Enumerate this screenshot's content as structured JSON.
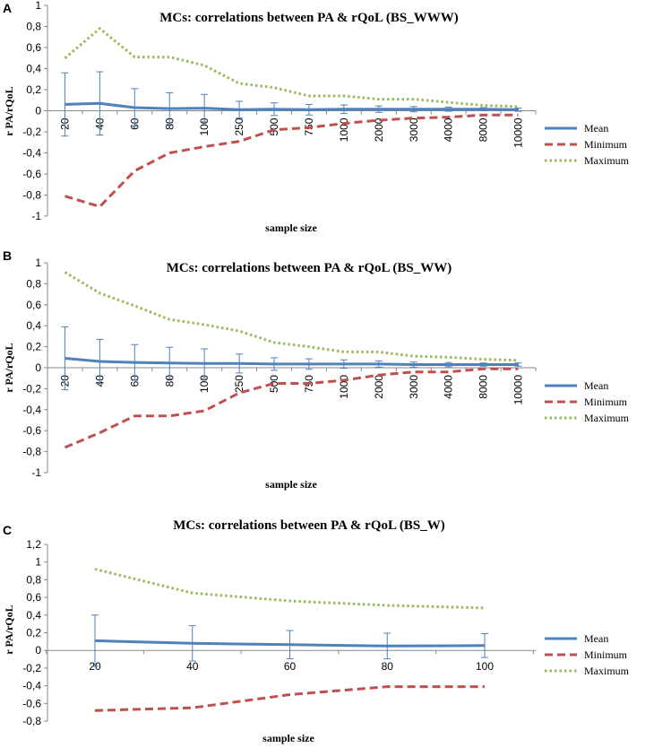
{
  "chart_data": [
    {
      "panel": "A",
      "type": "line",
      "title": "MCs: correlations between PA & rQoL (BS_WWW)",
      "xlabel": "sample size",
      "ylabel": "r PA/rQoL",
      "ylim": [
        -1,
        1
      ],
      "yticks": [
        "1",
        "0,8",
        "0,6",
        "0,4",
        "0,2",
        "0",
        "-0,2",
        "-0,4",
        "-0,6",
        "-0,8",
        "-1"
      ],
      "categories": [
        "20",
        "40",
        "60",
        "80",
        "100",
        "250",
        "500",
        "750",
        "1000",
        "2000",
        "3000",
        "4000",
        "8000",
        "10000"
      ],
      "series": [
        {
          "name": "Mean",
          "style": "solid",
          "color": "#4F81BD",
          "values": [
            0.06,
            0.07,
            0.03,
            0.02,
            0.025,
            0.01,
            0.015,
            0.01,
            0.015,
            0.015,
            0.015,
            0.015,
            0.015,
            0.01
          ]
        },
        {
          "name": "Minimum",
          "style": "dashed",
          "color": "#C0504D",
          "values": [
            -0.81,
            -0.91,
            -0.57,
            -0.4,
            -0.34,
            -0.29,
            -0.18,
            -0.16,
            -0.12,
            -0.09,
            -0.07,
            -0.06,
            -0.04,
            -0.04
          ]
        },
        {
          "name": "Maximum",
          "style": "dotted",
          "color": "#9BBB59",
          "values": [
            0.5,
            0.78,
            0.51,
            0.51,
            0.43,
            0.26,
            0.22,
            0.14,
            0.14,
            0.11,
            0.11,
            0.08,
            0.05,
            0.04
          ]
        }
      ],
      "error_bars": [
        0.3,
        0.3,
        0.18,
        0.15,
        0.13,
        0.08,
        0.06,
        0.05,
        0.04,
        0.03,
        0.025,
        0.02,
        0.015,
        0.015
      ],
      "legend": "right"
    },
    {
      "panel": "B",
      "type": "line",
      "title": "MCs: correlations between PA & rQoL (BS_WW)",
      "xlabel": "sample size",
      "ylabel": "r PA/rQoL",
      "ylim": [
        -1,
        1
      ],
      "yticks": [
        "1",
        "0,8",
        "0,6",
        "0,4",
        "0,2",
        "0",
        "-0,2",
        "-0,4",
        "-0,6",
        "-0,8",
        "-1"
      ],
      "categories": [
        "20",
        "40",
        "60",
        "80",
        "100",
        "250",
        "500",
        "750",
        "1000",
        "2000",
        "3000",
        "4000",
        "8000",
        "10000"
      ],
      "series": [
        {
          "name": "Mean",
          "style": "solid",
          "color": "#4F81BD",
          "values": [
            0.09,
            0.06,
            0.05,
            0.045,
            0.04,
            0.04,
            0.035,
            0.035,
            0.035,
            0.035,
            0.03,
            0.03,
            0.03,
            0.03
          ]
        },
        {
          "name": "Minimum",
          "style": "dashed",
          "color": "#C0504D",
          "values": [
            -0.76,
            -0.62,
            -0.46,
            -0.46,
            -0.41,
            -0.24,
            -0.15,
            -0.15,
            -0.12,
            -0.07,
            -0.04,
            -0.04,
            -0.01,
            -0.01
          ]
        },
        {
          "name": "Maximum",
          "style": "dotted",
          "color": "#9BBB59",
          "values": [
            0.91,
            0.71,
            0.59,
            0.46,
            0.41,
            0.35,
            0.24,
            0.2,
            0.15,
            0.15,
            0.11,
            0.1,
            0.08,
            0.07
          ]
        }
      ],
      "error_bars": [
        0.3,
        0.21,
        0.17,
        0.15,
        0.14,
        0.09,
        0.06,
        0.05,
        0.04,
        0.03,
        0.025,
        0.02,
        0.015,
        0.015
      ],
      "legend": "right"
    },
    {
      "panel": "C",
      "type": "line",
      "title": "MCs: correlations between PA & rQoL (BS_W)",
      "xlabel": "sample size",
      "ylabel": "r PA/rQoL",
      "ylim": [
        -0.8,
        1.2
      ],
      "yticks": [
        "1,2",
        "1",
        "0,8",
        "0,6",
        "0,4",
        "0,2",
        "0",
        "-0,2",
        "-0,4",
        "-0,6",
        "-0,8"
      ],
      "categories": [
        "20",
        "40",
        "60",
        "80",
        "100"
      ],
      "series": [
        {
          "name": "Mean",
          "style": "solid",
          "color": "#4F81BD",
          "values": [
            0.11,
            0.08,
            0.065,
            0.05,
            0.055
          ]
        },
        {
          "name": "Minimum",
          "style": "dashed",
          "color": "#C0504D",
          "values": [
            -0.68,
            -0.65,
            -0.5,
            -0.41,
            -0.41
          ]
        },
        {
          "name": "Maximum",
          "style": "dotted",
          "color": "#9BBB59",
          "values": [
            0.92,
            0.65,
            0.56,
            0.51,
            0.48
          ]
        }
      ],
      "error_bars": [
        0.29,
        0.2,
        0.16,
        0.145,
        0.135
      ],
      "legend": "right"
    }
  ]
}
